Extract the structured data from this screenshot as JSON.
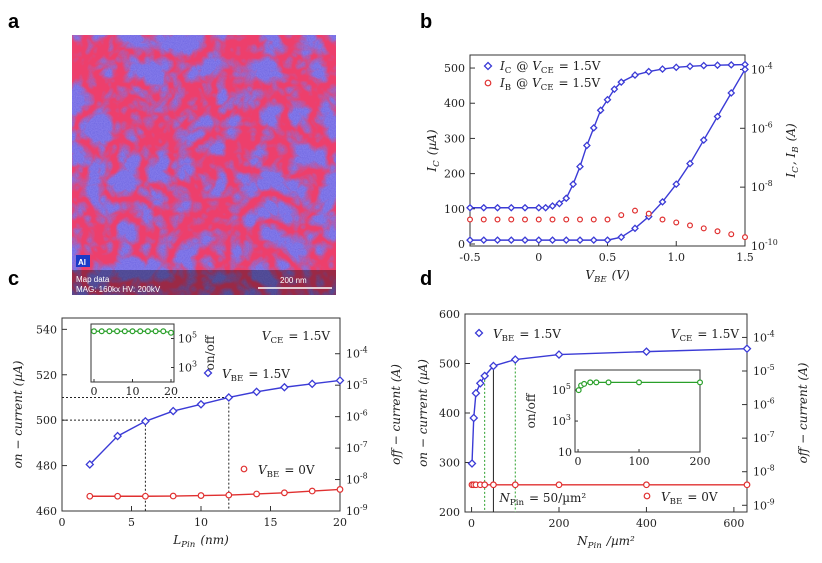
{
  "panels": {
    "a": "a",
    "b": "b",
    "c": "c",
    "d": "d"
  },
  "micrograph": {
    "element_badge": "Al",
    "scale_bar": "200 nm",
    "info_line1": "Map data",
    "info_line2": "MAG: 160kx  HV: 200kV"
  },
  "chart_data": [
    {
      "panel": "b",
      "type": "line",
      "xlabel": "V_BE (V)",
      "ylabel_left": "I_C (µA)",
      "ylabel_right": "I_C, I_B (A)",
      "xlim": [
        -0.5,
        1.5
      ],
      "ylim_left": [
        0,
        520
      ],
      "ylim_right_log": [
        -10,
        -3
      ],
      "xticks": [
        "-0.5",
        "0",
        "0.5",
        "1.0",
        "1.5"
      ],
      "yticks_left": [
        "0",
        "100",
        "200",
        "300",
        "400",
        "500"
      ],
      "yticks_right": [
        "10^-10",
        "10^-8",
        "10^-6",
        "10^-4"
      ],
      "legend": [
        "I_C @ V_CE = 1.5V",
        "I_B @ V_CE = 1.5V"
      ],
      "series": [
        {
          "name": "I_C @ V_CE = 1.5V",
          "color": "#3b3bd6",
          "axis": "left",
          "marker": "diamond",
          "x": [
            -0.5,
            -0.4,
            -0.3,
            -0.2,
            -0.1,
            0.0,
            0.05,
            0.1,
            0.15,
            0.2,
            0.25,
            0.3,
            0.35,
            0.4,
            0.45,
            0.5,
            0.55,
            0.6,
            0.7,
            0.8,
            0.9,
            1.0,
            1.1,
            1.2,
            1.3,
            1.4,
            1.5
          ],
          "y": [
            103,
            103,
            103,
            103,
            103,
            103,
            103,
            108,
            115,
            130,
            170,
            220,
            280,
            330,
            380,
            410,
            440,
            460,
            480,
            490,
            497,
            502,
            505,
            507,
            508,
            509,
            510
          ]
        },
        {
          "name": "I_C (log)",
          "color": "#3b3bd6",
          "axis": "right",
          "marker": "diamond",
          "x": [
            -0.5,
            -0.4,
            -0.3,
            -0.2,
            -0.1,
            0.0,
            0.1,
            0.2,
            0.3,
            0.4,
            0.5,
            0.6,
            0.7,
            0.8,
            0.9,
            1.0,
            1.1,
            1.2,
            1.3,
            1.4,
            1.5
          ],
          "y": [
            -9.8,
            -9.8,
            -9.8,
            -9.8,
            -9.8,
            -9.8,
            -9.8,
            -9.8,
            -9.8,
            -9.8,
            -9.8,
            -9.7,
            -9.4,
            -9.0,
            -8.5,
            -7.9,
            -7.2,
            -6.4,
            -5.6,
            -4.8,
            -4.0
          ]
        },
        {
          "name": "I_B @ V_CE = 1.5V",
          "color": "#e03030",
          "axis": "right",
          "marker": "circle",
          "x": [
            -0.5,
            -0.4,
            -0.3,
            -0.2,
            -0.1,
            0.0,
            0.1,
            0.2,
            0.3,
            0.4,
            0.5,
            0.6,
            0.7,
            0.8,
            0.9,
            1.0,
            1.1,
            1.2,
            1.3,
            1.4,
            1.5
          ],
          "y": [
            -9.1,
            -9.1,
            -9.1,
            -9.1,
            -9.1,
            -9.1,
            -9.1,
            -9.1,
            -9.1,
            -9.1,
            -9.1,
            -8.95,
            -8.8,
            -8.9,
            -9.1,
            -9.2,
            -9.3,
            -9.4,
            -9.5,
            -9.6,
            -9.7
          ]
        }
      ]
    },
    {
      "panel": "c",
      "type": "line",
      "xlabel": "L_Pin (nm)",
      "ylabel_left": "on − current (µA)",
      "ylabel_right": "off − current (A)",
      "xlim": [
        0,
        20
      ],
      "ylim_left": [
        460,
        545
      ],
      "ylim_right_log": [
        -9,
        -3.5
      ],
      "xticks": [
        "0",
        "5",
        "10",
        "15",
        "20"
      ],
      "yticks_left": [
        "460",
        "480",
        "500",
        "520",
        "540"
      ],
      "yticks_right": [
        "10^-9",
        "10^-8",
        "10^-7",
        "10^-6",
        "10^-5",
        "10^-4"
      ],
      "annotation": "V_CE = 1.5V",
      "series": [
        {
          "name": "V_BE = 1.5V",
          "color": "#3b3bd6",
          "marker": "diamond",
          "x": [
            2,
            4,
            6,
            8,
            10,
            12,
            14,
            16,
            18,
            20
          ],
          "y": [
            480.5,
            493,
            499.5,
            504,
            507,
            510,
            512.5,
            514.5,
            516,
            517.5
          ]
        },
        {
          "name": "V_BE = 0V",
          "color": "#e03030",
          "marker": "circle",
          "x": [
            2,
            4,
            6,
            8,
            10,
            12,
            14,
            16,
            18,
            20
          ],
          "y": [
            466.5,
            466.5,
            466.5,
            466.6,
            466.8,
            467,
            467.5,
            468,
            468.8,
            469.5
          ]
        }
      ],
      "guides": [
        {
          "x": 6,
          "y": 500
        },
        {
          "x": 12,
          "y": 510
        }
      ],
      "inset": {
        "xlim": [
          0,
          20
        ],
        "xticks": [
          "0",
          "10",
          "20"
        ],
        "ylabel": "on/off",
        "yticks": [
          "10^3",
          "10^5"
        ],
        "color": "#2aa02a",
        "x": [
          0,
          2,
          4,
          6,
          8,
          10,
          12,
          14,
          16,
          18,
          20
        ],
        "y": [
          5.5,
          5.5,
          5.5,
          5.5,
          5.5,
          5.5,
          5.5,
          5.5,
          5.5,
          5.5,
          5.4
        ]
      }
    },
    {
      "panel": "d",
      "type": "line",
      "xlabel": "N_Pin /µm²",
      "ylabel_left": "on − current (µA)",
      "ylabel_right": "off − current (A)",
      "xlim": [
        -15,
        630
      ],
      "ylim_left": [
        200,
        600
      ],
      "ylim_right_log": [
        -9.2,
        -3.6
      ],
      "xticks": [
        "0",
        "200",
        "400",
        "600"
      ],
      "yticks_left": [
        "200",
        "300",
        "400",
        "500",
        "600"
      ],
      "yticks_right": [
        "10^-9",
        "10^-8",
        "10^-7",
        "10^-6",
        "10^-5",
        "10^-4"
      ],
      "annotation": "V_CE = 1.5V",
      "guide_label": "N_Pin = 50/µm²",
      "series": [
        {
          "name": "V_BE = 1.5V",
          "color": "#3b3bd6",
          "marker": "diamond",
          "x": [
            1,
            5,
            10,
            20,
            30,
            50,
            100,
            200,
            400,
            630
          ],
          "y": [
            298,
            390,
            440,
            460,
            475,
            495,
            508,
            518,
            524,
            530
          ]
        },
        {
          "name": "V_BE = 0V",
          "color": "#e03030",
          "marker": "circle",
          "x": [
            1,
            5,
            10,
            20,
            30,
            50,
            100,
            200,
            400,
            630
          ],
          "y": [
            255,
            255,
            255,
            255,
            255,
            255,
            255,
            255,
            255,
            255
          ]
        }
      ],
      "inset": {
        "xlim": [
          -5,
          200
        ],
        "xticks": [
          "0",
          "100",
          "200"
        ],
        "ylabel": "on/off",
        "yticks": [
          "10",
          "10^3",
          "10^5"
        ],
        "color": "#2aa02a",
        "x": [
          1,
          5,
          10,
          20,
          30,
          50,
          100,
          200
        ],
        "y": [
          5.0,
          5.3,
          5.4,
          5.5,
          5.5,
          5.5,
          5.5,
          5.5
        ]
      }
    }
  ]
}
